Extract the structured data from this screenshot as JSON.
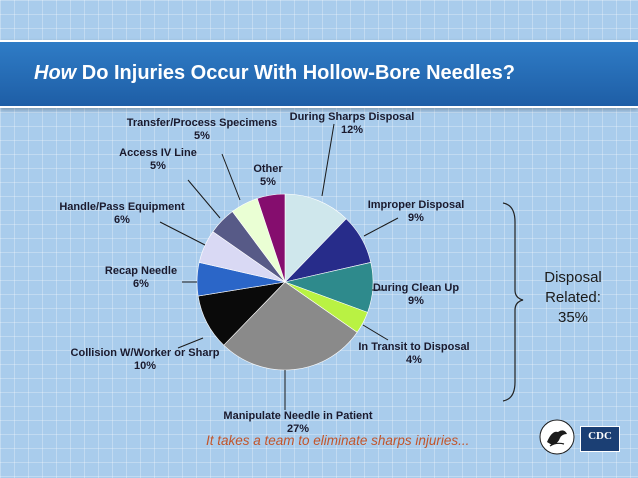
{
  "header": {
    "title_em": "How",
    "title_rest": " Do Injuries Occur With Hollow-Bore Needles?"
  },
  "bracket": {
    "lines": [
      "Disposal",
      "Related:",
      "35%"
    ]
  },
  "tagline": "It takes a team to eliminate sharps injuries...",
  "logos": {
    "cdc": "CDC"
  },
  "colors": {
    "banner": "#1e5ea6",
    "background": "#a9ccec",
    "tagline": "#c2552a"
  },
  "chart_data": {
    "type": "pie",
    "title": "",
    "slices": [
      {
        "label": "During Sharps Disposal",
        "value": 12,
        "display": "12%",
        "color": "#cfe7ec"
      },
      {
        "label": "Improper Disposal",
        "value": 9,
        "display": "9%",
        "color": "#272c8a"
      },
      {
        "label": "During Clean Up",
        "value": 9,
        "display": "9%",
        "color": "#2e8a8c"
      },
      {
        "label": "In Transit to Disposal",
        "value": 4,
        "display": "4%",
        "color": "#b9f243"
      },
      {
        "label": "Manipulate Needle in Patient",
        "value": 27,
        "display": "27%",
        "color": "#8a8a8a"
      },
      {
        "label": "Collision W/Worker or Sharp",
        "value": 10,
        "display": "10%",
        "color": "#0a0a0a"
      },
      {
        "label": "Recap Needle",
        "value": 6,
        "display": "6%",
        "color": "#2b66c8"
      },
      {
        "label": "Handle/Pass Equipment",
        "value": 6,
        "display": "6%",
        "color": "#d9d9f4"
      },
      {
        "label": "Access IV Line",
        "value": 5,
        "display": "5%",
        "color": "#575a87"
      },
      {
        "label": "Transfer/Process Specimens",
        "value": 5,
        "display": "5%",
        "color": "#eaffd4"
      },
      {
        "label": "Other",
        "value": 5,
        "display": "5%",
        "color": "#850d6e"
      }
    ]
  }
}
